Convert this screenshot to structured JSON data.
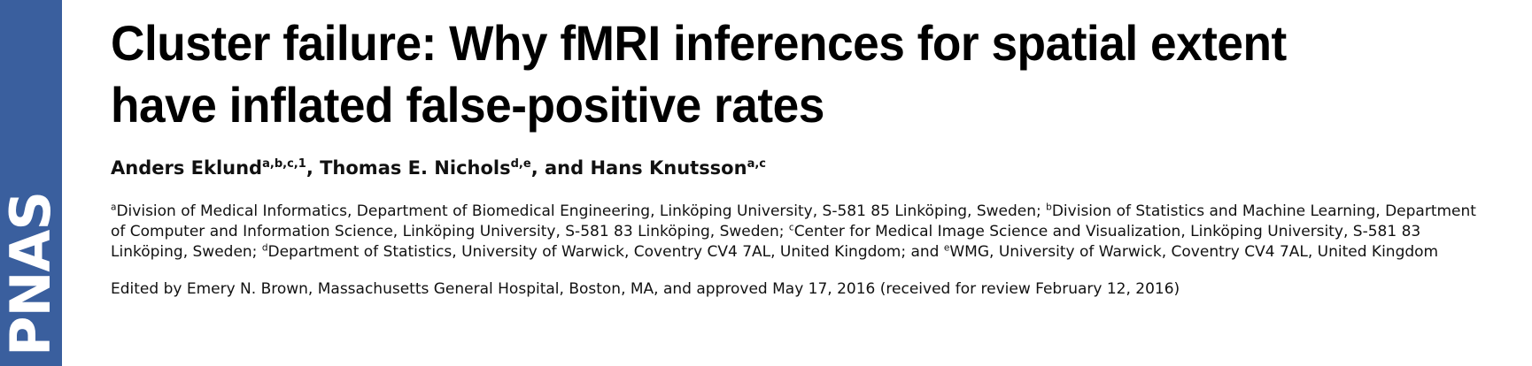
{
  "journal": {
    "logo_text": "PNAS",
    "sidebar_color": "#3a5f9e"
  },
  "article": {
    "title_line1": "Cluster failure: Why fMRI inferences for spatial extent",
    "title_line2": "have inflated false-positive rates",
    "authors": [
      {
        "name": "Anders Eklund",
        "marks": "a,b,c,1",
        "sep": ", "
      },
      {
        "name": "Thomas E. Nichols",
        "marks": "d,e",
        "sep": ", and "
      },
      {
        "name": "Hans Knutsson",
        "marks": "a,c",
        "sep": ""
      }
    ],
    "affiliations": [
      {
        "mark": "a",
        "text": "Division of Medical Informatics, Department of Biomedical Engineering, Linköping University, S-581 85 Linköping, Sweden; "
      },
      {
        "mark": "b",
        "text": "Division of Statistics and Machine Learning, Department of Computer and Information Science, Linköping University, S-581 83 Linköping, Sweden; "
      },
      {
        "mark": "c",
        "text": "Center for Medical Image Science and Visualization, Linköping University, S-581 83 Linköping, Sweden; "
      },
      {
        "mark": "d",
        "text": "Department of Statistics, University of Warwick, Coventry CV4 7AL, United Kingdom; and "
      },
      {
        "mark": "e",
        "text": "WMG, University of Warwick, Coventry CV4 7AL, United Kingdom"
      }
    ],
    "edited_by": "Edited by Emery N. Brown, Massachusetts General Hospital, Boston, MA, and approved May 17, 2016 (received for review February 12, 2016)"
  }
}
